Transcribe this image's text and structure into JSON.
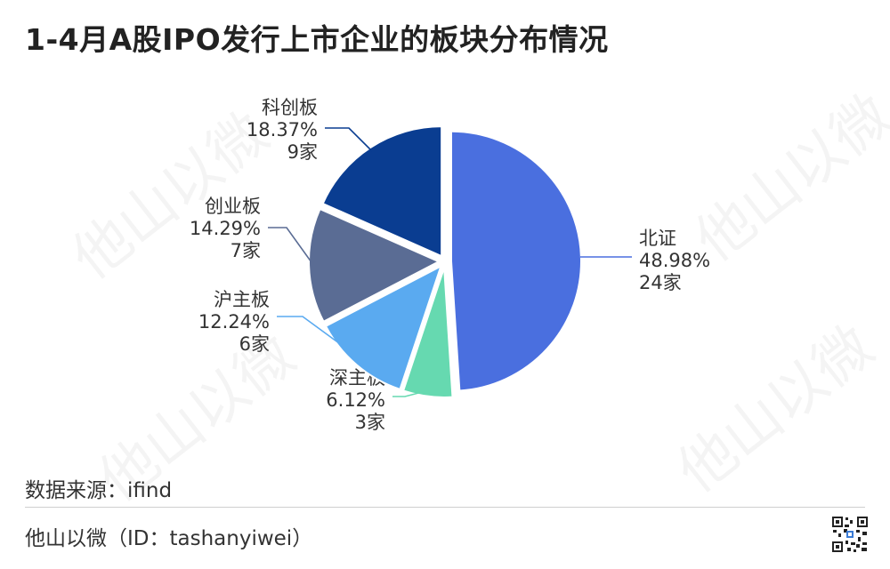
{
  "title": "1-4月A股IPO发行上市企业的板块分布情况",
  "source": "数据来源：ifind",
  "footer": "他山以微（ID：tashanyiwei）",
  "colors": {
    "beizheng": "#4a6fdf",
    "shenzhuban": "#66d9b0",
    "huzhuban": "#5aaaf0",
    "chuangyeban": "#5a6c94",
    "kechuangban": "#0a3d91"
  },
  "chart_data": {
    "type": "pie",
    "slices": [
      {
        "label": "北证",
        "percent": "48.98%",
        "count": "24家",
        "value": 24,
        "color": "#4a6fdf"
      },
      {
        "label": "深主板",
        "percent": "6.12%",
        "count": "3家",
        "value": 3,
        "color": "#66d9b0"
      },
      {
        "label": "沪主板",
        "percent": "12.24%",
        "count": "6家",
        "value": 6,
        "color": "#5aaaf0"
      },
      {
        "label": "创业板",
        "percent": "14.29%",
        "count": "7家",
        "value": 7,
        "color": "#5a6c94"
      },
      {
        "label": "科创板",
        "percent": "18.37%",
        "count": "9家",
        "value": 9,
        "color": "#0a3d91"
      }
    ],
    "start_angle": "12 o'clock",
    "direction": "clockwise",
    "label_position": "outside with leader lines"
  }
}
